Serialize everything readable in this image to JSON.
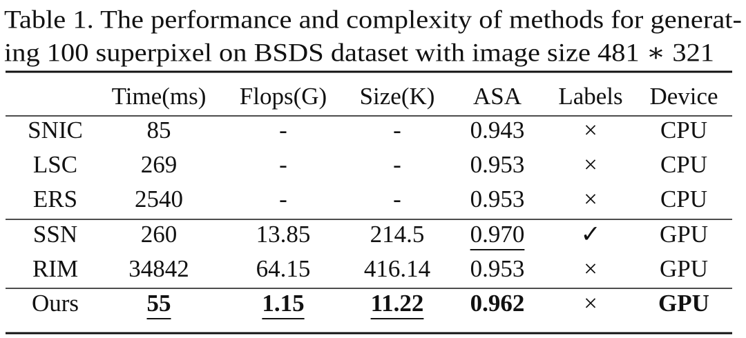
{
  "caption": [
    "Table 1. The performance and complexity of methods for generat-",
    "ing 100 superpixel on BSDS dataset with image size 481 ∗ 321"
  ],
  "table": {
    "header": [
      "Time(ms)",
      "Flops(G)",
      "Size(K)",
      "ASA",
      "Labels",
      "Device"
    ],
    "rows": [
      [
        "SNIC",
        "85",
        "-",
        "-",
        "0.943",
        "×",
        "CPU"
      ],
      [
        "LSC",
        "269",
        "-",
        "-",
        "0.953",
        "×",
        "CPU"
      ],
      [
        "ERS",
        "2540",
        "-",
        "-",
        "0.953",
        "×",
        "CPU"
      ],
      [
        "SSN",
        "260",
        "13.85",
        "214.5",
        "0.970",
        "✓",
        "GPU"
      ],
      [
        "RIM",
        "34842",
        "64.15",
        "416.14",
        "0.953",
        "×",
        "GPU"
      ],
      [
        "Ours",
        "55",
        "1.15",
        "11.22",
        "0.962",
        "×",
        "GPU"
      ]
    ]
  }
}
